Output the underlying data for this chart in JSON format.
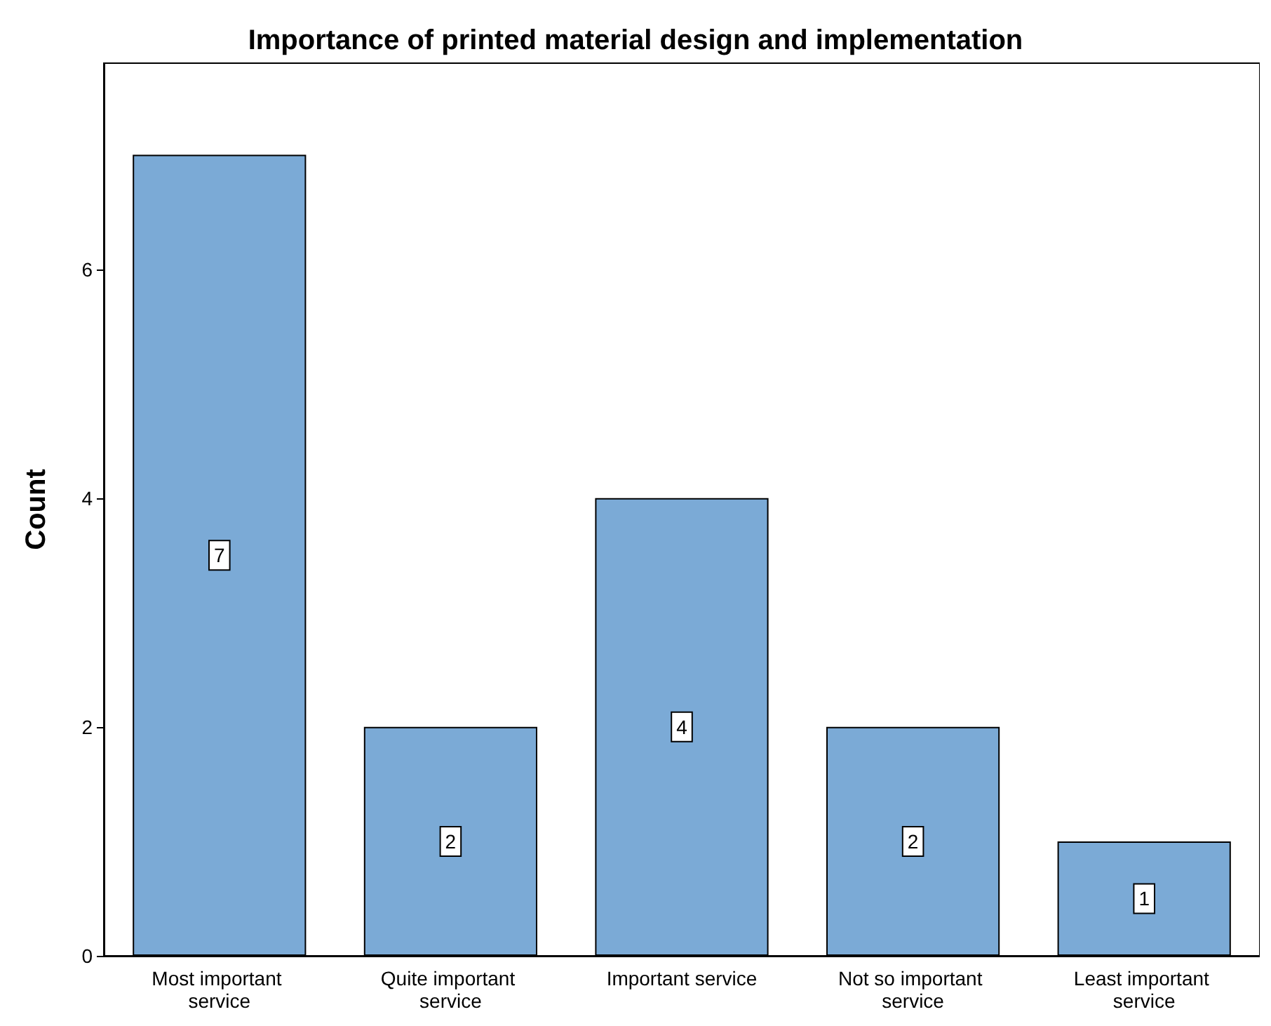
{
  "chart_data": {
    "type": "bar",
    "title": "Importance of printed material design and implementation",
    "ylabel": "Count",
    "categories": [
      "Most important service",
      "Quite important service",
      "Important service",
      "Not so important service",
      "Least important service"
    ],
    "values": [
      7,
      2,
      4,
      2,
      1
    ],
    "color": "#7baad6",
    "ylim": [
      0,
      7.8
    ],
    "yticks": [
      0,
      2,
      4,
      6
    ],
    "grid": false,
    "data_labels": true
  }
}
